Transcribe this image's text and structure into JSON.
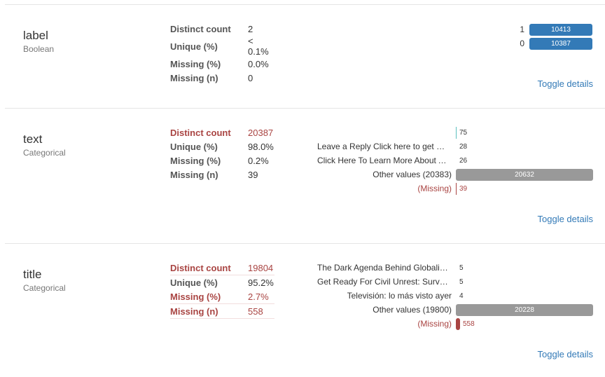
{
  "variables": {
    "label": {
      "name": "label",
      "type": "Boolean",
      "stats": [
        {
          "key": "Distinct count",
          "value": "2"
        },
        {
          "key": "Unique (%)",
          "value": "< 0.1%"
        },
        {
          "key": "Missing (%)",
          "value": "0.0%"
        },
        {
          "key": "Missing (n)",
          "value": "0"
        }
      ],
      "freq": [
        {
          "value": "1",
          "count": "10413",
          "fraction": 1.0
        },
        {
          "value": "0",
          "count": "10387",
          "fraction": 0.9975
        }
      ],
      "toggle": "Toggle details"
    },
    "text": {
      "name": "text",
      "type": "Categorical",
      "stats": [
        {
          "key": "Distinct count",
          "value": "20387",
          "alert": true
        },
        {
          "key": "Unique (%)",
          "value": "98.0%"
        },
        {
          "key": "Missing (%)",
          "value": "0.2%"
        },
        {
          "key": "Missing (n)",
          "value": "39"
        }
      ],
      "freq": [
        {
          "value": "",
          "count": "75",
          "fraction": 0.0036
        },
        {
          "value": "Leave a Reply Click here to get more info on …",
          "count": "28",
          "fraction": 0.0014
        },
        {
          "value": "Click Here To Learn More About Alexandra's …",
          "count": "26",
          "fraction": 0.0013
        },
        {
          "value": "Other values (20383)",
          "count": "20632",
          "fraction": 1.0,
          "other": true
        },
        {
          "value": "(Missing)",
          "count": "39",
          "fraction": 0.0019,
          "missing": true
        }
      ],
      "toggle": "Toggle details"
    },
    "title": {
      "name": "title",
      "type": "Categorical",
      "stats": [
        {
          "key": "Distinct count",
          "value": "19804",
          "alert": true
        },
        {
          "key": "Unique (%)",
          "value": "95.2%"
        },
        {
          "key": "Missing (%)",
          "value": "2.7%",
          "alert": true
        },
        {
          "key": "Missing (n)",
          "value": "558",
          "alert": true
        }
      ],
      "freq": [
        {
          "value": "The Dark Agenda Behind Globalism And Open Borders",
          "count": "5",
          "fraction": 0.0002
        },
        {
          "value": "Get Ready For Civil Unrest: Survey Finds That …",
          "count": "5",
          "fraction": 0.0002
        },
        {
          "value": "Televisión: lo más visto ayer",
          "count": "4",
          "fraction": 0.0002
        },
        {
          "value": "Other values (19800)",
          "count": "20228",
          "fraction": 1.0,
          "other": true
        },
        {
          "value": "(Missing)",
          "count": "558",
          "fraction": 0.0276,
          "missing": true
        }
      ],
      "toggle": "Toggle details"
    }
  },
  "colors": {
    "bar": "#337ab7",
    "other_bar": "#999999",
    "missing": "#a94442",
    "link": "#337ab7"
  }
}
